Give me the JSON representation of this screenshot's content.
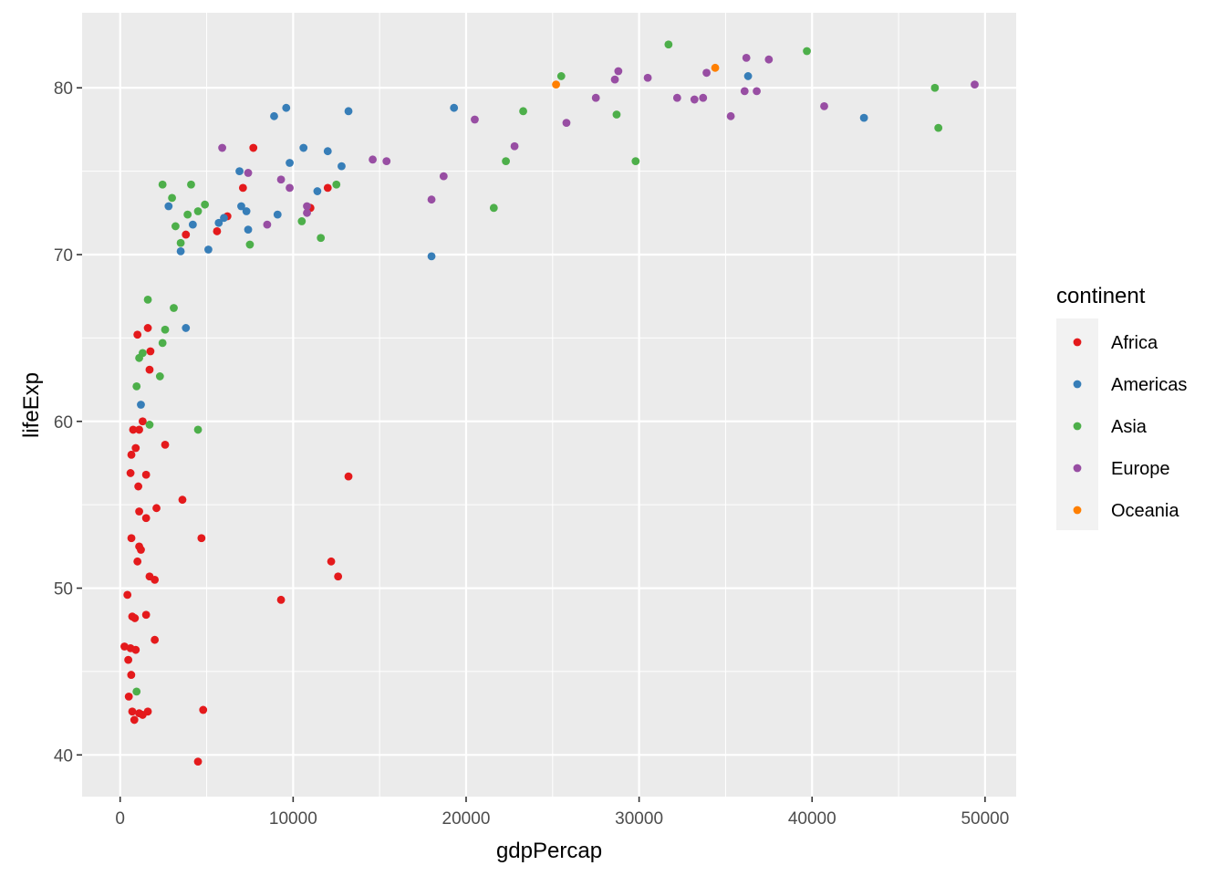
{
  "chart_data": {
    "type": "scatter",
    "title": "",
    "xlabel": "gdpPercap",
    "ylabel": "lifeExp",
    "xlim": [
      -2200,
      51800
    ],
    "ylim": [
      37.5,
      84.5
    ],
    "x_ticks": [
      0,
      10000,
      20000,
      30000,
      40000,
      50000
    ],
    "x_tick_labels": [
      "0",
      "10000",
      "20000",
      "30000",
      "40000",
      "50000"
    ],
    "y_ticks": [
      40,
      50,
      60,
      70,
      80
    ],
    "y_tick_labels": [
      "40",
      "50",
      "60",
      "70",
      "80"
    ],
    "grid": true,
    "background": "#ebebeb",
    "legend": {
      "title": "continent",
      "position": "right"
    },
    "series": [
      {
        "name": "Africa",
        "color": "#e41a1c",
        "points": [
          [
            250,
            46.5
          ],
          [
            470,
            45.7
          ],
          [
            420,
            49.6
          ],
          [
            500,
            43.5
          ],
          [
            600,
            46.4
          ],
          [
            640,
            44.8
          ],
          [
            700,
            42.6
          ],
          [
            820,
            42.1
          ],
          [
            900,
            46.3
          ],
          [
            700,
            48.3
          ],
          [
            850,
            48.2
          ],
          [
            1100,
            42.5
          ],
          [
            1300,
            42.4
          ],
          [
            1600,
            42.6
          ],
          [
            650,
            53.0
          ],
          [
            1000,
            51.6
          ],
          [
            1100,
            52.5
          ],
          [
            1200,
            52.3
          ],
          [
            1500,
            48.4
          ],
          [
            2000,
            46.9
          ],
          [
            600,
            56.9
          ],
          [
            650,
            58.0
          ],
          [
            750,
            59.5
          ],
          [
            900,
            58.4
          ],
          [
            1100,
            59.5
          ],
          [
            1300,
            60.0
          ],
          [
            1050,
            56.1
          ],
          [
            1100,
            54.6
          ],
          [
            1500,
            56.8
          ],
          [
            1500,
            54.2
          ],
          [
            1700,
            50.7
          ],
          [
            2000,
            50.5
          ],
          [
            2100,
            54.8
          ],
          [
            1000,
            65.2
          ],
          [
            1600,
            65.6
          ],
          [
            1750,
            64.2
          ],
          [
            1700,
            63.1
          ],
          [
            2600,
            58.6
          ],
          [
            3600,
            55.3
          ],
          [
            4700,
            53.0
          ],
          [
            4500,
            39.6
          ],
          [
            4800,
            42.7
          ],
          [
            9300,
            49.3
          ],
          [
            12200,
            51.6
          ],
          [
            12600,
            50.7
          ],
          [
            13200,
            56.7
          ],
          [
            3800,
            71.2
          ],
          [
            5600,
            71.4
          ],
          [
            6200,
            72.3
          ],
          [
            7100,
            74.0
          ],
          [
            7700,
            76.4
          ],
          [
            11000,
            72.8
          ],
          [
            12000,
            74.0
          ]
        ]
      },
      {
        "name": "Americas",
        "color": "#377eb8",
        "points": [
          [
            1200,
            61.0
          ],
          [
            3800,
            65.6
          ],
          [
            2800,
            72.9
          ],
          [
            3500,
            70.2
          ],
          [
            4200,
            71.8
          ],
          [
            5100,
            70.3
          ],
          [
            5700,
            71.9
          ],
          [
            6000,
            72.2
          ],
          [
            6900,
            75.0
          ],
          [
            7000,
            72.9
          ],
          [
            7300,
            72.6
          ],
          [
            7400,
            71.5
          ],
          [
            8900,
            78.3
          ],
          [
            9100,
            72.4
          ],
          [
            9600,
            78.8
          ],
          [
            9800,
            75.5
          ],
          [
            10600,
            76.4
          ],
          [
            11400,
            73.8
          ],
          [
            12000,
            76.2
          ],
          [
            12800,
            75.3
          ],
          [
            13200,
            78.6
          ],
          [
            18000,
            69.9
          ],
          [
            19300,
            78.8
          ],
          [
            36300,
            80.7
          ],
          [
            43000,
            78.2
          ]
        ]
      },
      {
        "name": "Asia",
        "color": "#4daf4a",
        "points": [
          [
            950,
            43.8
          ],
          [
            950,
            62.1
          ],
          [
            1100,
            63.8
          ],
          [
            1300,
            64.1
          ],
          [
            1600,
            67.3
          ],
          [
            1700,
            59.8
          ],
          [
            2300,
            62.7
          ],
          [
            2450,
            64.7
          ],
          [
            2600,
            65.5
          ],
          [
            3100,
            66.8
          ],
          [
            4500,
            59.5
          ],
          [
            2450,
            74.2
          ],
          [
            3000,
            73.4
          ],
          [
            3200,
            71.7
          ],
          [
            3500,
            70.7
          ],
          [
            3900,
            72.4
          ],
          [
            4100,
            74.2
          ],
          [
            4500,
            72.6
          ],
          [
            4900,
            73.0
          ],
          [
            7500,
            70.6
          ],
          [
            10500,
            72.0
          ],
          [
            11600,
            71.0
          ],
          [
            12500,
            74.2
          ],
          [
            21600,
            72.8
          ],
          [
            22300,
            75.6
          ],
          [
            23300,
            78.6
          ],
          [
            25500,
            80.7
          ],
          [
            28700,
            78.4
          ],
          [
            29800,
            75.6
          ],
          [
            31700,
            82.6
          ],
          [
            39700,
            82.2
          ],
          [
            47100,
            80.0
          ],
          [
            47300,
            77.6
          ]
        ]
      },
      {
        "name": "Europe",
        "color": "#984ea3",
        "points": [
          [
            5900,
            76.4
          ],
          [
            7400,
            74.9
          ],
          [
            8500,
            71.8
          ],
          [
            9300,
            74.5
          ],
          [
            9800,
            74.0
          ],
          [
            10800,
            72.9
          ],
          [
            10800,
            72.5
          ],
          [
            14600,
            75.7
          ],
          [
            15400,
            75.6
          ],
          [
            18000,
            73.3
          ],
          [
            18700,
            74.7
          ],
          [
            20500,
            78.1
          ],
          [
            22800,
            76.5
          ],
          [
            25800,
            77.9
          ],
          [
            27500,
            79.4
          ],
          [
            28600,
            80.5
          ],
          [
            28800,
            81.0
          ],
          [
            30500,
            80.6
          ],
          [
            32200,
            79.4
          ],
          [
            33200,
            79.3
          ],
          [
            33700,
            79.4
          ],
          [
            33900,
            80.9
          ],
          [
            35300,
            78.3
          ],
          [
            36100,
            79.8
          ],
          [
            36200,
            81.8
          ],
          [
            36800,
            79.8
          ],
          [
            37500,
            81.7
          ],
          [
            40700,
            78.9
          ],
          [
            49400,
            80.2
          ]
        ]
      },
      {
        "name": "Oceania",
        "color": "#ff7f00",
        "points": [
          [
            25200,
            80.2
          ],
          [
            34400,
            81.2
          ]
        ]
      }
    ]
  }
}
